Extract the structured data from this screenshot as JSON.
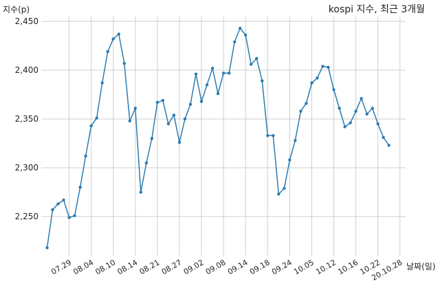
{
  "chart_data": {
    "type": "line",
    "title": "kospi 지수, 최근 3개월",
    "ylabel": "지수(p)",
    "xlabel": "날짜(일)",
    "ylim": [
      2210,
      2455
    ],
    "yticks": [
      2250,
      2300,
      2350,
      2400,
      2450
    ],
    "ytick_labels": [
      "2,250",
      "2,300",
      "2,350",
      "2,400",
      "2,450"
    ],
    "x_tick_labels": [
      "07.29",
      "08.04",
      "08.10",
      "08.14",
      "08.21",
      "08.27",
      "09.02",
      "09.08",
      "09.14",
      "09.18",
      "09.24",
      "10.05",
      "10.12",
      "10.16",
      "10.22",
      "20.10.28"
    ],
    "x_tick_index": [
      4,
      8,
      12,
      16,
      20,
      24,
      28,
      32,
      36,
      40,
      44,
      48,
      52,
      56,
      60,
      64
    ],
    "grid": true,
    "color": "#2b7bb0",
    "values": [
      2218,
      2257,
      2263,
      2267,
      2249,
      2251,
      2280,
      2312,
      2343,
      2351,
      2387,
      2419,
      2432,
      2437,
      2407,
      2348,
      2361,
      2275,
      2305,
      2330,
      2367,
      2369,
      2345,
      2354,
      2326,
      2350,
      2365,
      2396,
      2368,
      2385,
      2402,
      2376,
      2397,
      2397,
      2429,
      2443,
      2436,
      2406,
      2412,
      2389,
      2333,
      2333,
      2273,
      2279,
      2308,
      2328,
      2358,
      2366,
      2387,
      2392,
      2404,
      2403,
      2380,
      2361,
      2342,
      2346,
      2358,
      2371,
      2355,
      2361,
      2345,
      2331,
      2323
    ]
  }
}
